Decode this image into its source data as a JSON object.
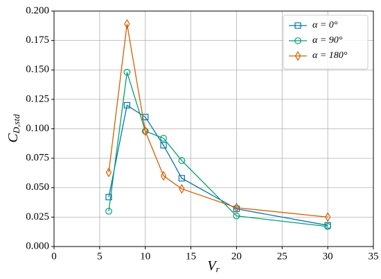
{
  "chart_data": {
    "type": "line",
    "xlabel": {
      "base": "V",
      "sub": "r"
    },
    "ylabel": {
      "base": "C",
      "sub": "D,std"
    },
    "x": [
      6,
      8,
      10,
      12,
      14,
      20,
      30
    ],
    "series": [
      {
        "name": "α = 0°",
        "color": "#0173b2",
        "marker": "square",
        "values": [
          0.042,
          0.12,
          0.11,
          0.086,
          0.058,
          0.032,
          0.018
        ]
      },
      {
        "name": "α = 90°",
        "color": "#029e73",
        "marker": "circle",
        "values": [
          0.03,
          0.148,
          0.098,
          0.092,
          0.073,
          0.026,
          0.017
        ]
      },
      {
        "name": "α = 180°",
        "color": "#d55e00",
        "marker": "diamond",
        "values": [
          0.063,
          0.189,
          0.098,
          0.06,
          0.049,
          0.033,
          0.025
        ]
      }
    ],
    "xlim": [
      0,
      35
    ],
    "xticks": [
      0,
      5,
      10,
      15,
      20,
      25,
      30,
      35
    ],
    "ylim": [
      0,
      0.2
    ],
    "yticks": [
      {
        "value": 0,
        "label": "0.000"
      },
      {
        "value": 0.025,
        "label": "0.025"
      },
      {
        "value": 0.05,
        "label": "0.050"
      },
      {
        "value": 0.075,
        "label": "0.075"
      },
      {
        "value": 0.1,
        "label": "0.100"
      },
      {
        "value": 0.125,
        "label": "0.125"
      },
      {
        "value": 0.15,
        "label": "0.150"
      },
      {
        "value": 0.175,
        "label": "0.175"
      },
      {
        "value": 0.2,
        "label": "0.200"
      }
    ],
    "grid": true,
    "legend": "upper right"
  }
}
